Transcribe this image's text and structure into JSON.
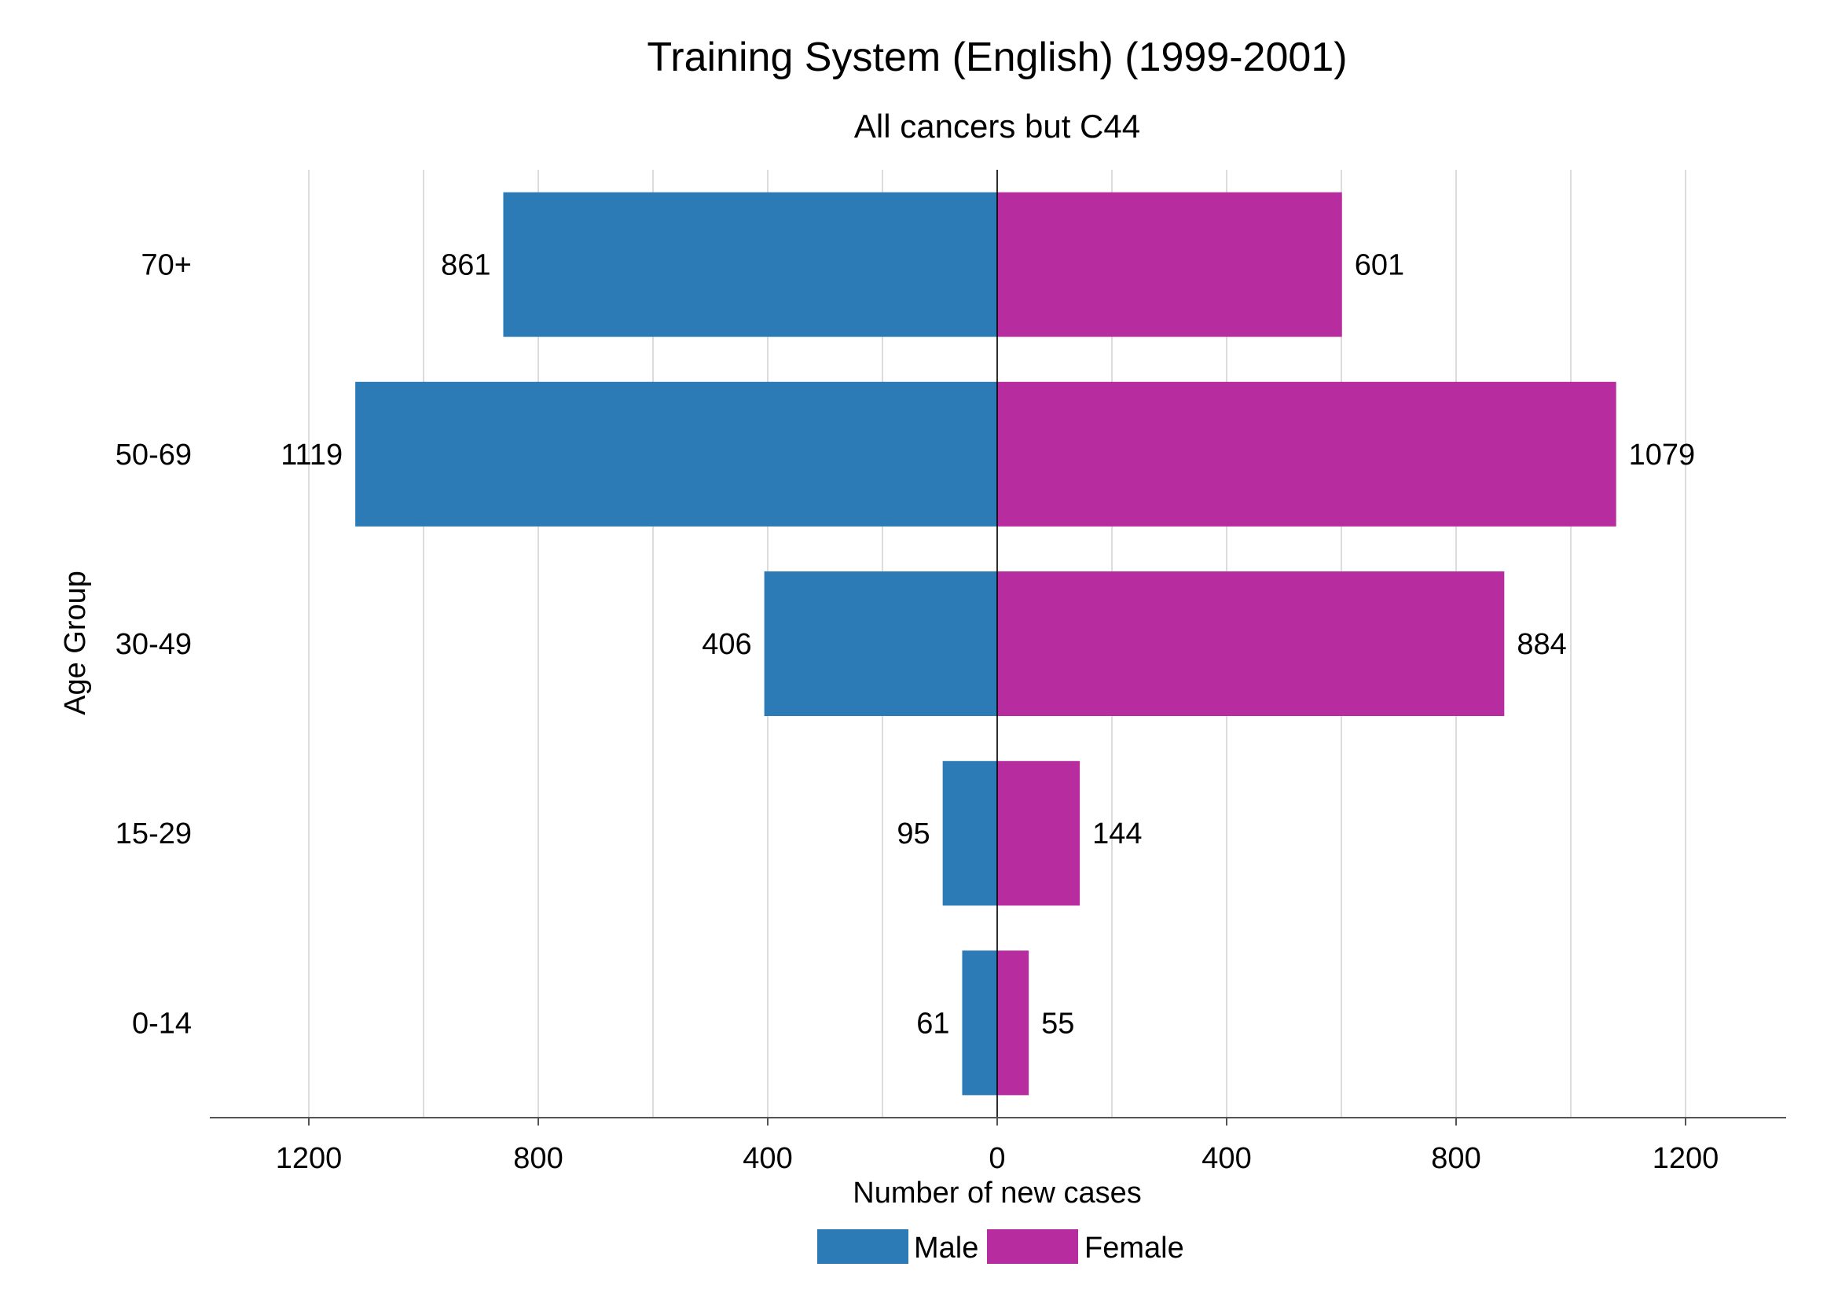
{
  "chart_data": {
    "type": "bar",
    "orientation": "horizontal-diverging",
    "title": "Training System (English) (1999-2001)",
    "subtitle": "All cancers but C44",
    "xlabel": "Number of new cases",
    "ylabel": "Age Group",
    "categories": [
      "70+",
      "50-69",
      "30-49",
      "15-29",
      "0-14"
    ],
    "series": [
      {
        "name": "Male",
        "color": "#2c7bb6",
        "values": [
          861,
          1119,
          406,
          95,
          61
        ]
      },
      {
        "name": "Female",
        "color": "#b72da0",
        "values": [
          601,
          1079,
          884,
          144,
          55
        ]
      }
    ],
    "x_tick_values": [
      -1200,
      -800,
      -400,
      0,
      400,
      800,
      1200
    ],
    "x_tick_labels": [
      "1200",
      "800",
      "400",
      "0",
      "400",
      "800",
      "1200"
    ],
    "grid_values": [
      -1200,
      -1000,
      -800,
      -600,
      -400,
      -200,
      0,
      200,
      400,
      600,
      800,
      1000,
      1200
    ],
    "xlim": [
      -1375,
      1375
    ],
    "grid": true,
    "legend_position": "bottom-center"
  }
}
